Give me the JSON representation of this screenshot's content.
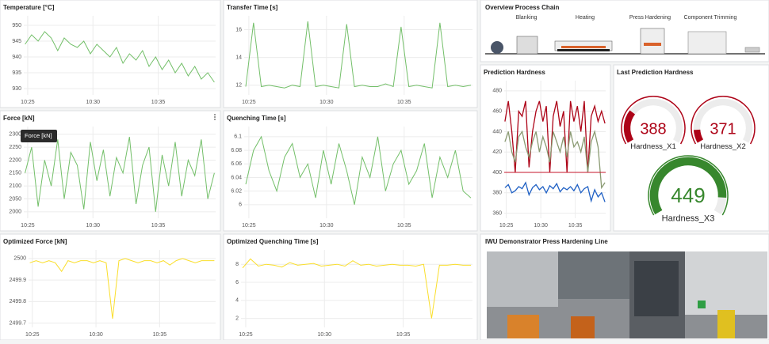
{
  "chart_data": [
    {
      "type": "line",
      "title": "Temperature [°C]",
      "color": "#73bf69",
      "x": [
        624.8,
        625.3,
        625.8,
        626.3,
        626.8,
        627.3,
        627.8,
        628.3,
        628.8,
        629.3,
        629.8,
        630.3,
        630.8,
        631.3,
        631.8,
        632.3,
        632.8,
        633.3,
        633.8,
        634.3,
        634.8,
        635.3,
        635.8,
        636.3,
        636.8,
        637.3,
        637.8,
        638.3,
        638.8,
        639.3
      ],
      "values": [
        944,
        947,
        945,
        948,
        946,
        942,
        946,
        944,
        943,
        945,
        941,
        944,
        942,
        940,
        943,
        938,
        941,
        939,
        942,
        937,
        940,
        936,
        939,
        935,
        938,
        934,
        937,
        933,
        935,
        932
      ],
      "xlim": [
        624.7,
        639.4
      ],
      "xticks": [
        {
          "value": 625,
          "label": "10:25"
        },
        {
          "value": 630,
          "label": "10:30"
        },
        {
          "value": 635,
          "label": "10:35"
        }
      ],
      "ylim": [
        928,
        953
      ],
      "yticks": [
        930,
        935,
        940,
        945,
        950
      ],
      "grid": true
    },
    {
      "type": "line",
      "title": "Transfer Time [s]",
      "color": "#73bf69",
      "x": [
        624.8,
        625.3,
        625.8,
        626.3,
        626.8,
        627.3,
        627.8,
        628.3,
        628.8,
        629.3,
        629.8,
        630.3,
        630.8,
        631.3,
        631.8,
        632.3,
        632.8,
        633.3,
        633.8,
        634.3,
        634.8,
        635.3,
        635.8,
        636.3,
        636.8,
        637.3,
        637.8,
        638.3,
        638.8,
        639.3
      ],
      "values": [
        11.9,
        16.5,
        11.9,
        12.0,
        11.9,
        11.8,
        12.0,
        11.9,
        16.6,
        11.9,
        12.0,
        11.9,
        11.8,
        16.4,
        11.9,
        12.0,
        11.9,
        11.9,
        12.1,
        11.9,
        16.2,
        11.9,
        12.0,
        11.9,
        11.8,
        16.5,
        11.9,
        12.0,
        11.9,
        12.0
      ],
      "xlim": [
        624.7,
        639.4
      ],
      "xticks": [
        {
          "value": 625,
          "label": "10:25"
        },
        {
          "value": 630,
          "label": "10:30"
        },
        {
          "value": 635,
          "label": "10:35"
        }
      ],
      "ylim": [
        11.3,
        17
      ],
      "yticks": [
        12,
        14,
        16
      ],
      "grid": true
    },
    {
      "type": "line",
      "title": "Force [kN]",
      "tooltip": "Force [kN]",
      "color": "#73bf69",
      "x": [
        624.8,
        625.3,
        625.8,
        626.3,
        626.8,
        627.3,
        627.8,
        628.3,
        628.8,
        629.3,
        629.8,
        630.3,
        630.8,
        631.3,
        631.8,
        632.3,
        632.8,
        633.3,
        633.8,
        634.3,
        634.8,
        635.3,
        635.8,
        636.3,
        636.8,
        637.3,
        637.8,
        638.3,
        638.8,
        639.3
      ],
      "values": [
        2150,
        2250,
        2020,
        2200,
        2100,
        2280,
        2050,
        2230,
        2180,
        2010,
        2270,
        2120,
        2240,
        2060,
        2210,
        2150,
        2290,
        2030,
        2180,
        2250,
        2000,
        2220,
        2100,
        2270,
        2060,
        2200,
        2140,
        2280,
        2050,
        2150
      ],
      "xlim": [
        624.7,
        639.4
      ],
      "xticks": [
        {
          "value": 625,
          "label": "10:25"
        },
        {
          "value": 630,
          "label": "10:30"
        },
        {
          "value": 635,
          "label": "10:35"
        }
      ],
      "ylim": [
        1975,
        2330
      ],
      "yticks": [
        2000,
        2050,
        2100,
        2150,
        2200,
        2250,
        2300
      ],
      "grid": true
    },
    {
      "type": "line",
      "title": "Quenching Time [s]",
      "color": "#73bf69",
      "x": [
        624.8,
        625.3,
        625.8,
        626.3,
        626.8,
        627.3,
        627.8,
        628.3,
        628.8,
        629.3,
        629.8,
        630.3,
        630.8,
        631.3,
        631.8,
        632.3,
        632.8,
        633.3,
        633.8,
        634.3,
        634.8,
        635.3,
        635.8,
        636.3,
        636.8,
        637.3,
        637.8,
        638.3,
        638.8,
        639.3
      ],
      "values": [
        6.03,
        6.08,
        6.1,
        6.05,
        6.02,
        6.07,
        6.09,
        6.04,
        6.06,
        6.01,
        6.08,
        6.03,
        6.09,
        6.05,
        6.0,
        6.07,
        6.04,
        6.1,
        6.02,
        6.06,
        6.08,
        6.03,
        6.05,
        6.09,
        6.01,
        6.07,
        6.04,
        6.08,
        6.02,
        6.01
      ],
      "xlim": [
        624.7,
        639.4
      ],
      "xticks": [
        {
          "value": 625,
          "label": "10:25"
        },
        {
          "value": 630,
          "label": "10:30"
        },
        {
          "value": 635,
          "label": "10:35"
        }
      ],
      "ylim": [
        5.98,
        6.115
      ],
      "yticks": [
        6,
        6.02,
        6.04,
        6.06,
        6.08,
        6.1
      ],
      "grid": true
    },
    {
      "type": "line",
      "title": "Optimized Force [kN]",
      "color": "#fade2a",
      "x": [
        624.8,
        625.3,
        625.8,
        626.3,
        626.8,
        627.3,
        627.8,
        628.3,
        628.8,
        629.3,
        629.8,
        630.3,
        630.8,
        631.3,
        631.8,
        632.3,
        632.8,
        633.3,
        633.8,
        634.3,
        634.8,
        635.3,
        635.8,
        636.3,
        636.8,
        637.3,
        637.8,
        638.3,
        638.8,
        639.3
      ],
      "values": [
        2499.98,
        2499.99,
        2499.98,
        2499.99,
        2499.98,
        2499.94,
        2499.99,
        2499.98,
        2499.99,
        2499.99,
        2499.98,
        2499.99,
        2499.98,
        2499.72,
        2499.99,
        2500,
        2499.99,
        2499.98,
        2499.99,
        2499.99,
        2499.98,
        2499.99,
        2499.97,
        2499.99,
        2500,
        2499.99,
        2499.98,
        2499.99,
        2499.99,
        2499.99
      ],
      "xlim": [
        624.7,
        639.4
      ],
      "xticks": [
        {
          "value": 625,
          "label": "10:25"
        },
        {
          "value": 630,
          "label": "10:30"
        },
        {
          "value": 635,
          "label": "10:35"
        }
      ],
      "ylim": [
        2499.68,
        2500.04
      ],
      "yticks": [
        2499.7,
        2499.8,
        2499.9,
        2500
      ],
      "grid": true
    },
    {
      "type": "line",
      "title": "Optimized Quenching Time [s]",
      "color": "#fade2a",
      "x": [
        624.8,
        625.3,
        625.8,
        626.3,
        626.8,
        627.3,
        627.8,
        628.3,
        628.8,
        629.3,
        629.8,
        630.3,
        630.8,
        631.3,
        631.8,
        632.3,
        632.8,
        633.3,
        633.8,
        634.3,
        634.8,
        635.3,
        635.8,
        636.3,
        636.8,
        637.3,
        637.8,
        638.3,
        638.8,
        639.3
      ],
      "values": [
        7.6,
        8.6,
        7.8,
        8.0,
        7.9,
        7.7,
        8.2,
        7.9,
        8.0,
        8.1,
        7.8,
        7.9,
        8.0,
        7.8,
        8.4,
        7.9,
        8.0,
        7.8,
        7.9,
        8.0,
        7.9,
        7.9,
        7.8,
        8.0,
        2.0,
        7.9,
        7.9,
        8.0,
        7.9,
        7.9
      ],
      "xlim": [
        624.7,
        639.4
      ],
      "xticks": [
        {
          "value": 625,
          "label": "10:25"
        },
        {
          "value": 630,
          "label": "10:30"
        },
        {
          "value": 635,
          "label": "10:35"
        }
      ],
      "ylim": [
        1,
        9.6
      ],
      "yticks": [
        2,
        4,
        6,
        8
      ],
      "grid": true
    },
    {
      "type": "line",
      "title": "Prediction Hardness",
      "x": [
        624.8,
        625.3,
        625.8,
        626.3,
        626.8,
        627.3,
        627.8,
        628.3,
        628.8,
        629.3,
        629.8,
        630.3,
        630.8,
        631.3,
        631.8,
        632.3,
        632.8,
        633.3,
        633.8,
        634.3,
        634.8,
        635.3,
        635.8,
        636.3,
        636.8,
        637.3,
        637.8,
        638.3,
        638.8,
        639.3
      ],
      "series": [
        {
          "color": "#ad0317",
          "values": [
            450,
            470,
            440,
            400,
            460,
            455,
            470,
            405,
            440,
            460,
            470,
            450,
            465,
            400,
            455,
            470,
            445,
            460,
            400,
            470,
            450,
            465,
            440,
            470,
            400,
            455,
            465,
            450,
            460,
            448
          ]
        },
        {
          "color": "#8a9a72",
          "values": [
            430,
            440,
            420,
            410,
            435,
            440,
            425,
            415,
            430,
            440,
            420,
            435,
            425,
            410,
            440,
            430,
            420,
            435,
            415,
            440,
            425,
            430,
            420,
            435,
            400,
            430,
            440,
            425,
            385,
            390
          ]
        },
        {
          "color": "#1f60c4",
          "values": [
            385,
            388,
            380,
            382,
            386,
            384,
            390,
            378,
            385,
            388,
            383,
            386,
            380,
            387,
            384,
            389,
            381,
            385,
            383,
            386,
            382,
            388,
            380,
            384,
            386,
            372,
            383,
            376,
            380,
            371
          ]
        }
      ],
      "threshold": 400,
      "threshold_color": "#c4162a",
      "xlim": [
        624.7,
        639.4
      ],
      "xticks": [
        {
          "value": 625,
          "label": "10:25"
        },
        {
          "value": 630,
          "label": "10:30"
        },
        {
          "value": 635,
          "label": "10:35"
        }
      ],
      "ylim": [
        355,
        490
      ],
      "yticks": [
        360,
        380,
        400,
        420,
        440,
        460,
        480
      ],
      "grid": true
    },
    {
      "type": "gauge",
      "title": "Last Prediction Hardness",
      "min": 360,
      "max": 460,
      "series": [
        {
          "name": "Hardness_X1",
          "value": 388,
          "color": "#ad0317"
        },
        {
          "name": "Hardness_X2",
          "value": 371,
          "color": "#ad0317"
        },
        {
          "name": "Hardness_X3",
          "value": 449,
          "color": "#37872d"
        }
      ]
    }
  ],
  "process_chain": {
    "title": "Overview Process Chain",
    "steps": [
      "Blanking",
      "Heating",
      "Press Hardening",
      "Component Trimming"
    ]
  },
  "photo": {
    "title": "IWU Demonstrator Press Hardening Line"
  }
}
